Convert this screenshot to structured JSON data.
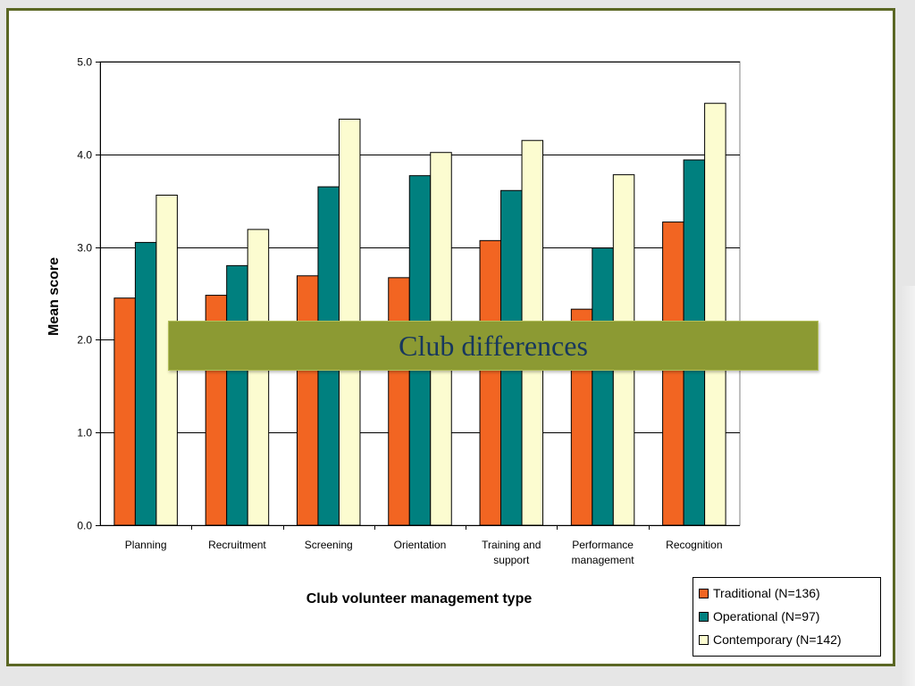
{
  "chart_data": {
    "type": "bar",
    "title": "",
    "xlabel": "Club volunteer management type",
    "ylabel": "Mean score",
    "ylim": [
      0,
      5
    ],
    "yticks": [
      "0.0",
      "1.0",
      "2.0",
      "3.0",
      "4.0",
      "5.0"
    ],
    "grid": true,
    "legend_position": "bottom-right",
    "categories": [
      [
        "Planning"
      ],
      [
        "Recruitment"
      ],
      [
        "Screening"
      ],
      [
        "Orientation"
      ],
      [
        "Training and",
        "support"
      ],
      [
        "Performance",
        "management"
      ],
      [
        "Recognition"
      ]
    ],
    "series": [
      {
        "name": "Traditional (N=136)",
        "color": "#f26522",
        "values": [
          2.45,
          2.48,
          2.69,
          2.67,
          3.07,
          2.33,
          3.27
        ]
      },
      {
        "name": "Operational (N=97)",
        "color": "#00807f",
        "values": [
          3.05,
          2.8,
          3.65,
          3.77,
          3.61,
          2.99,
          3.94
        ]
      },
      {
        "name": "Contemporary (N=142)",
        "color": "#fcfcd0",
        "values": [
          3.56,
          3.19,
          4.38,
          4.02,
          4.15,
          3.78,
          4.55
        ]
      }
    ]
  },
  "banner": {
    "text": "Club differences"
  }
}
